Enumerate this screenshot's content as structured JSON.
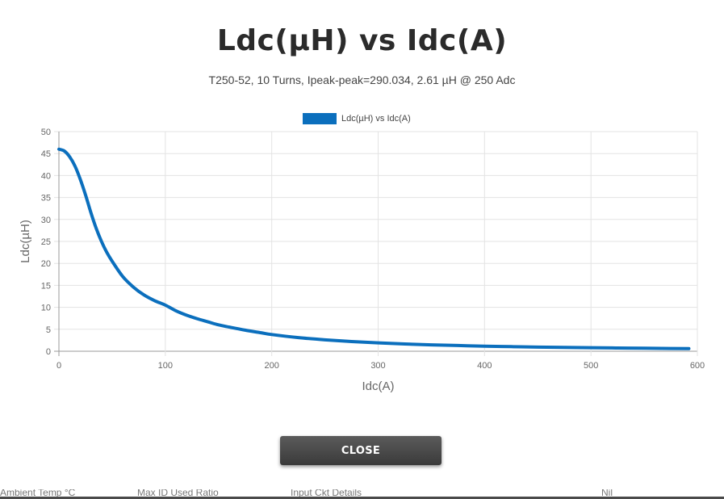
{
  "dialog": {
    "title": "Ldc(µH) vs Idc(A)",
    "subtitle": "T250-52, 10 Turns, Ipeak-peak=290.034, 2.61 µH @ 250 Adc",
    "close_label": "CLOSE"
  },
  "chart_data": {
    "type": "line",
    "xlabel": "Idc(A)",
    "ylabel": "Ldc(µH)",
    "xlim": [
      0,
      600
    ],
    "ylim": [
      0,
      50
    ],
    "x_ticks": [
      0,
      100,
      200,
      300,
      400,
      500,
      600
    ],
    "y_ticks": [
      0,
      5,
      10,
      15,
      20,
      25,
      30,
      35,
      40,
      45,
      50
    ],
    "grid": true,
    "legend": "top-center",
    "series": [
      {
        "name": "Ldc(µH) vs Idc(A)",
        "color": "#0b6fbd",
        "x": [
          0,
          5,
          10,
          15,
          20,
          25,
          30,
          35,
          40,
          45,
          50,
          60,
          70,
          80,
          90,
          100,
          110,
          120,
          130,
          140,
          150,
          160,
          175,
          190,
          200,
          225,
          250,
          275,
          300,
          325,
          350,
          375,
          400,
          425,
          450,
          475,
          500,
          525,
          550,
          575,
          592
        ],
        "y": [
          46.0,
          45.6,
          44.3,
          42.2,
          39.2,
          35.6,
          31.6,
          28.0,
          25.0,
          22.5,
          20.5,
          17.0,
          14.6,
          12.8,
          11.5,
          10.5,
          9.2,
          8.2,
          7.4,
          6.7,
          6.0,
          5.5,
          4.8,
          4.2,
          3.8,
          3.1,
          2.6,
          2.2,
          1.9,
          1.65,
          1.45,
          1.3,
          1.15,
          1.05,
          0.95,
          0.87,
          0.8,
          0.74,
          0.68,
          0.63,
          0.6
        ]
      }
    ]
  },
  "background_row": {
    "items": [
      "Ambient Temp °C",
      "Max ID Used Ratio",
      "Input Ckt Details",
      "Nil"
    ]
  }
}
